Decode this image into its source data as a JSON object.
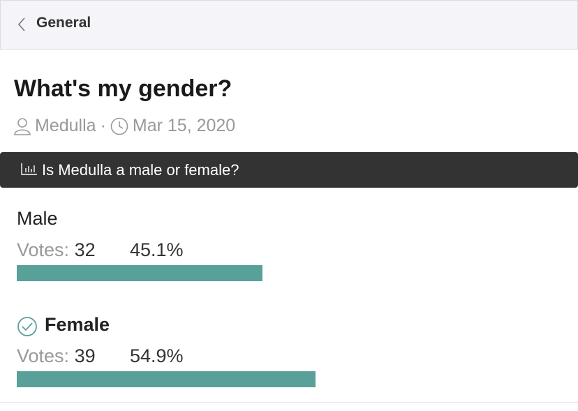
{
  "nav": {
    "back_label": "General"
  },
  "thread": {
    "title": "What's my gender?",
    "author": "Medulla",
    "separator": "·",
    "date": "Mar 15, 2020"
  },
  "poll": {
    "question": "Is Medulla a male or female?",
    "bar_color": "#5aa09a",
    "options": [
      {
        "label": "Male",
        "votes_label": "Votes:",
        "votes": 32,
        "percent": 45.1,
        "percent_label": "45.1%",
        "selected": false
      },
      {
        "label": "Female",
        "votes_label": "Votes:",
        "votes": 39,
        "percent": 54.9,
        "percent_label": "54.9%",
        "selected": true
      }
    ]
  }
}
